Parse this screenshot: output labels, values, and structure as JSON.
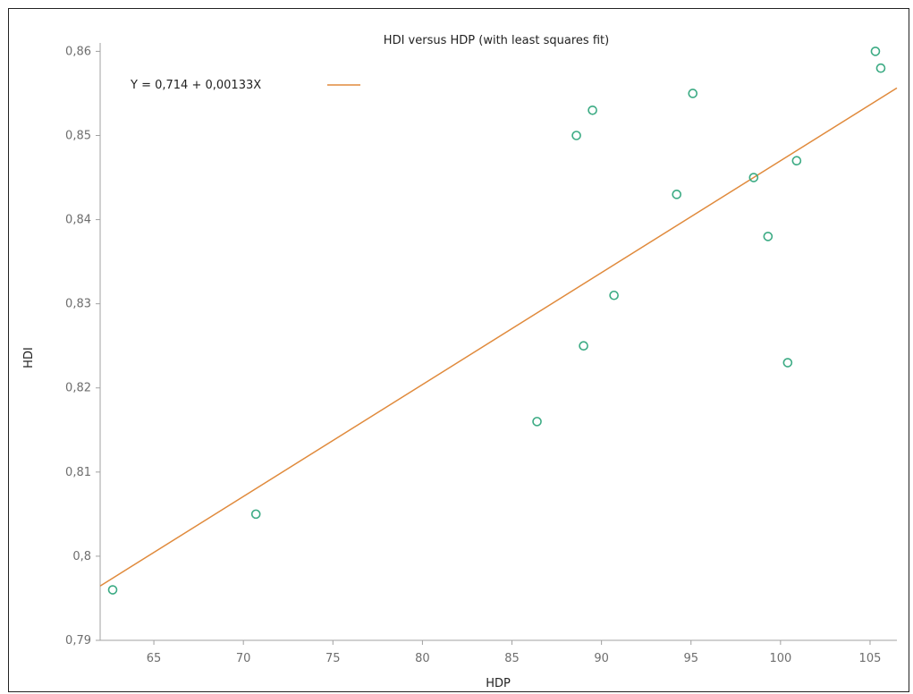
{
  "chart_data": {
    "type": "scatter",
    "title": "HDI versus HDP (with least squares fit)",
    "xlabel": "HDP",
    "ylabel": "HDI",
    "xlim": [
      62,
      106.5
    ],
    "ylim": [
      0.79,
      0.861
    ],
    "xticks": [
      65,
      70,
      75,
      80,
      85,
      90,
      95,
      100,
      105
    ],
    "xtick_labels": [
      "65",
      "70",
      "75",
      "80",
      "85",
      "90",
      "95",
      "100",
      "105"
    ],
    "yticks": [
      0.79,
      0.8,
      0.81,
      0.82,
      0.83,
      0.84,
      0.85,
      0.86
    ],
    "ytick_labels": [
      "0,79",
      "0,8",
      "0,81",
      "0,82",
      "0,83",
      "0,84",
      "0,85",
      "0,86"
    ],
    "grid": false,
    "legend_position": "top-left",
    "series": [
      {
        "name": "",
        "kind": "scatter",
        "color": "#3cab84",
        "points": [
          {
            "x": 62.7,
            "y": 0.796
          },
          {
            "x": 70.7,
            "y": 0.805
          },
          {
            "x": 86.4,
            "y": 0.816
          },
          {
            "x": 88.6,
            "y": 0.85
          },
          {
            "x": 89.0,
            "y": 0.825
          },
          {
            "x": 89.5,
            "y": 0.853
          },
          {
            "x": 90.7,
            "y": 0.831
          },
          {
            "x": 94.2,
            "y": 0.843
          },
          {
            "x": 95.1,
            "y": 0.855
          },
          {
            "x": 98.5,
            "y": 0.845
          },
          {
            "x": 99.3,
            "y": 0.838
          },
          {
            "x": 100.4,
            "y": 0.823
          },
          {
            "x": 100.9,
            "y": 0.847
          },
          {
            "x": 105.3,
            "y": 0.86
          },
          {
            "x": 105.6,
            "y": 0.858
          }
        ]
      },
      {
        "name": "Y = 0,714 + 0,00133X",
        "kind": "line",
        "color": "#e08a3c",
        "intercept": 0.714,
        "slope": 0.00133
      }
    ]
  }
}
